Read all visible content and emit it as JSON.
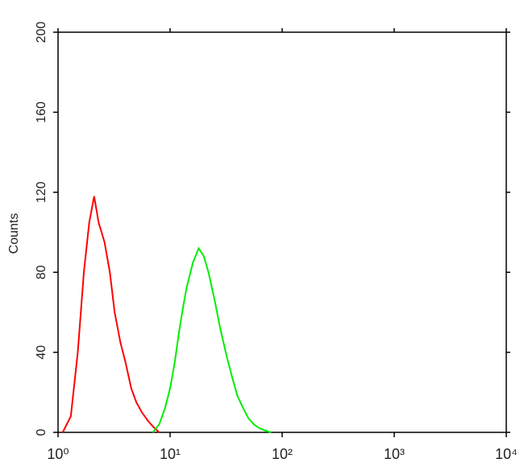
{
  "chart_data": {
    "type": "line",
    "y_label": "Counts",
    "x_scale": "log",
    "xlim": [
      1,
      10000
    ],
    "xticks": [
      {
        "value": 1,
        "label": "10⁰"
      },
      {
        "value": 10,
        "label": "10¹"
      },
      {
        "value": 100,
        "label": "10²"
      },
      {
        "value": 1000,
        "label": "10³"
      },
      {
        "value": 10000,
        "label": "10⁴"
      }
    ],
    "ylim": [
      0,
      200
    ],
    "yticks": [
      0,
      40,
      80,
      120,
      160,
      200
    ],
    "series": [
      {
        "color": "#ff0000",
        "x": [
          1.1,
          1.3,
          1.5,
          1.7,
          1.9,
          2.1,
          2.3,
          2.6,
          2.9,
          3.2,
          3.6,
          4,
          4.5,
          5,
          5.6,
          6.3,
          7,
          8
        ],
        "values": [
          0,
          8,
          40,
          80,
          105,
          118,
          105,
          95,
          80,
          60,
          45,
          35,
          22,
          15,
          10,
          6,
          3,
          0
        ]
      },
      {
        "color": "#00ee00",
        "x": [
          7,
          8,
          9,
          10,
          11,
          12,
          13,
          14,
          16,
          18,
          20,
          22,
          25,
          28,
          32,
          36,
          40,
          45,
          50,
          56,
          63,
          70,
          80
        ],
        "values": [
          0,
          4,
          12,
          22,
          35,
          50,
          62,
          72,
          85,
          92,
          88,
          80,
          66,
          52,
          38,
          27,
          18,
          12,
          7,
          4,
          2,
          1,
          0
        ]
      }
    ]
  }
}
